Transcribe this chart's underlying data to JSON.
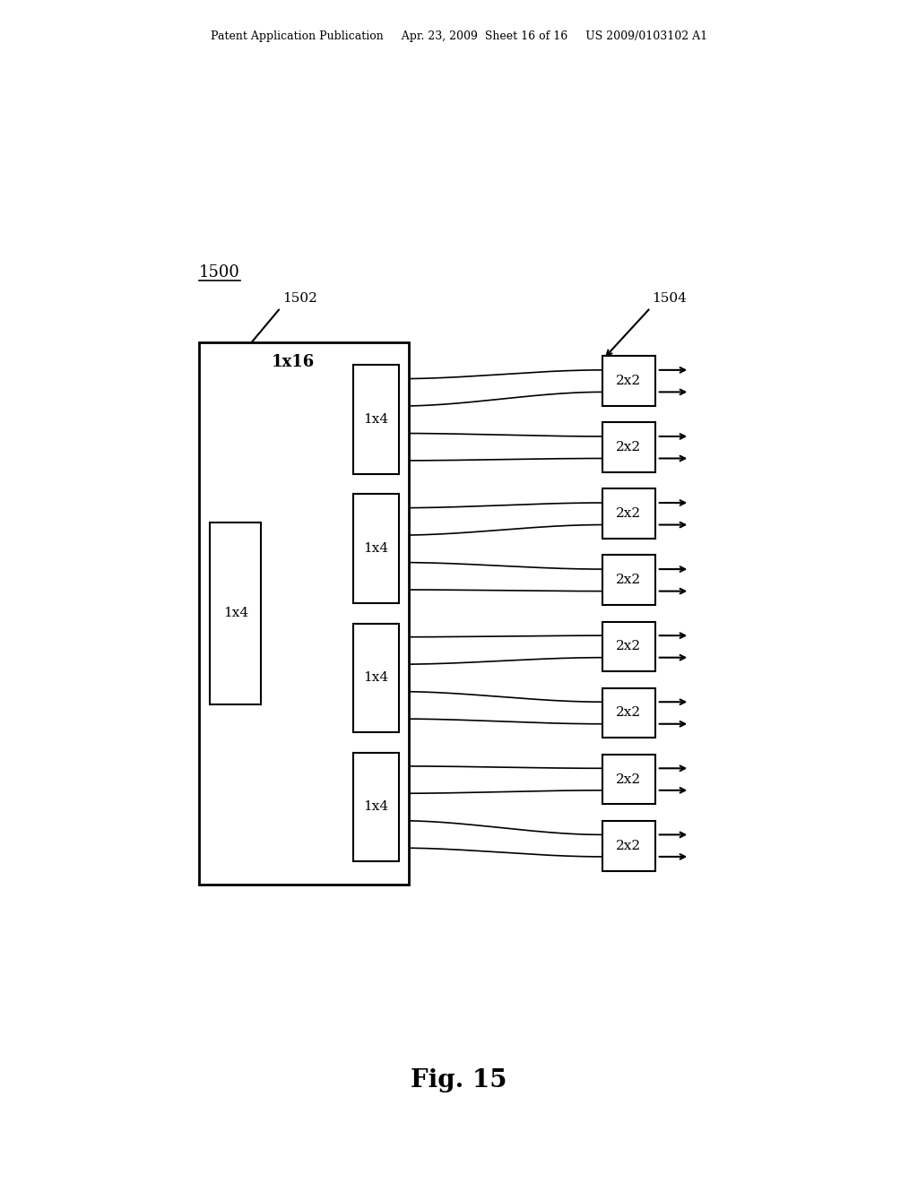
{
  "bg_color": "#ffffff",
  "header_text": "Patent Application Publication     Apr. 23, 2009  Sheet 16 of 16     US 2009/0103102 A1",
  "fig_label": "Fig. 15",
  "label_1500": "1500",
  "label_1502": "1502",
  "label_1504": "1504"
}
